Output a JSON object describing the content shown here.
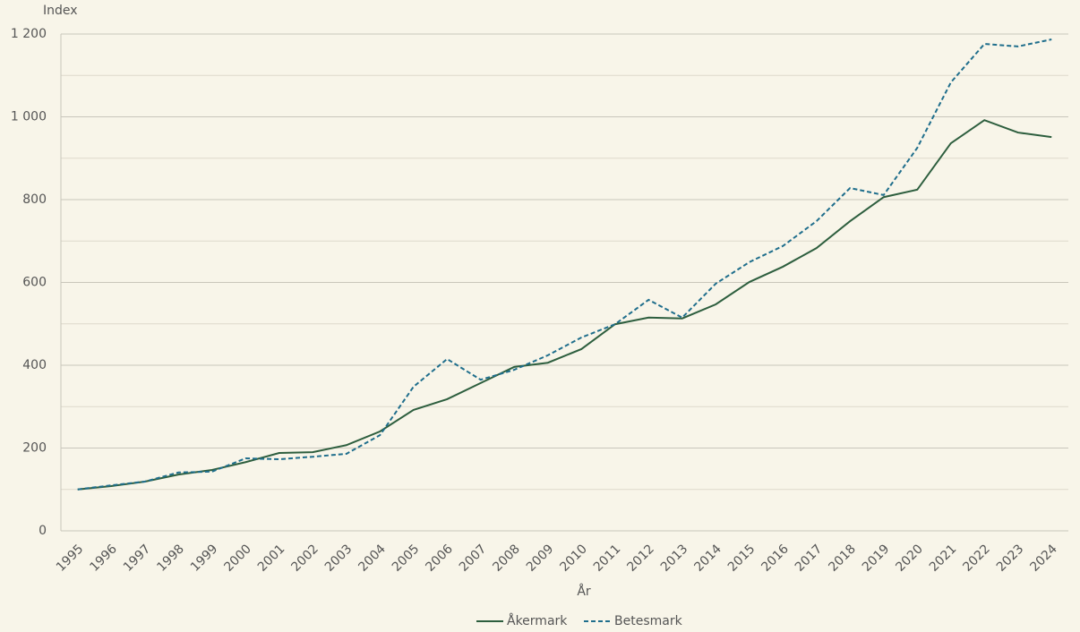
{
  "chart_data": {
    "type": "line",
    "y_label": "Index",
    "x_label": "År",
    "categories": [
      "1995",
      "1996",
      "1997",
      "1998",
      "1999",
      "2000",
      "2001",
      "2002",
      "2003",
      "2004",
      "2005",
      "2006",
      "2007",
      "2008",
      "2009",
      "2010",
      "2011",
      "2012",
      "2013",
      "2014",
      "2015",
      "2016",
      "2017",
      "2018",
      "2019",
      "2020",
      "2021",
      "2022",
      "2023",
      "2024"
    ],
    "series": [
      {
        "name": "Åkermark",
        "color": "#2d5e3e",
        "dashed": false,
        "values": [
          100,
          108,
          119,
          136,
          147,
          166,
          188,
          190,
          207,
          240,
          292,
          318,
          357,
          396,
          406,
          439,
          499,
          515,
          513,
          547,
          601,
          638,
          683,
          748,
          806,
          824,
          936,
          992,
          962,
          951
        ]
      },
      {
        "name": "Betesmark",
        "color": "#1f6e8c",
        "dashed": true,
        "values": [
          100,
          110,
          119,
          141,
          143,
          175,
          173,
          179,
          186,
          231,
          348,
          415,
          365,
          389,
          424,
          467,
          499,
          558,
          515,
          597,
          649,
          688,
          748,
          828,
          811,
          925,
          1083,
          1176,
          1170,
          1187
        ]
      }
    ],
    "ylim": [
      0,
      1200
    ],
    "yticks": [
      0,
      200,
      400,
      600,
      800,
      {
        "value": 1000,
        "label": "1 000"
      },
      {
        "value": 1200,
        "label": "1 200"
      }
    ],
    "y_minor_ticks": [
      100,
      300,
      500,
      700,
      900,
      1100
    ],
    "grid": true,
    "legend": "bottom"
  }
}
